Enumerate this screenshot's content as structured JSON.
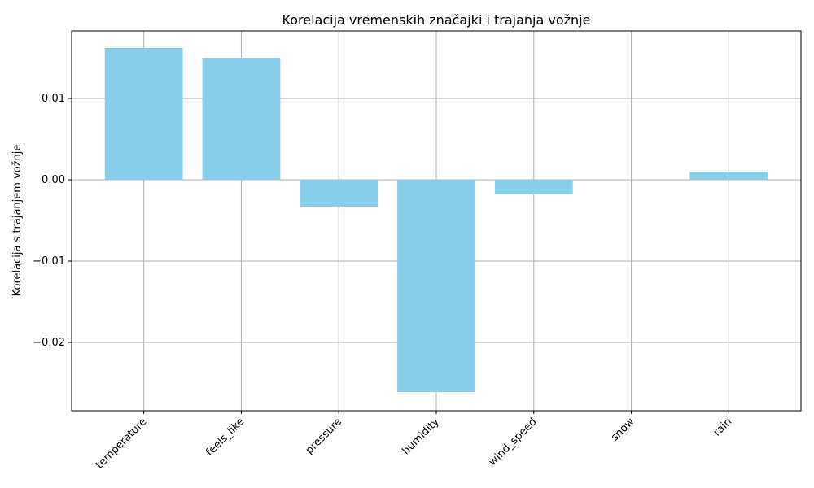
{
  "chart_data": {
    "type": "bar",
    "title": "Korelacija vremenskih značajki i trajanja vožnje",
    "xlabel": "",
    "ylabel": "Korelacija s trajanjem vožnje",
    "categories": [
      "temperature",
      "feels_like",
      "pressure",
      "humidity",
      "wind_speed",
      "snow",
      "rain"
    ],
    "values": [
      0.0162,
      0.015,
      -0.0033,
      -0.0261,
      -0.0018,
      0.0,
      0.001
    ],
    "yticks": [
      0.01,
      0.0,
      -0.01,
      -0.02
    ],
    "ytick_labels": [
      "0.01",
      "0.00",
      "−0.01",
      "−0.02"
    ],
    "ylim": [
      -0.0284,
      0.0183
    ],
    "grid": true,
    "bar_color": "#87CEEB",
    "grid_color": "#b0b0b0"
  }
}
